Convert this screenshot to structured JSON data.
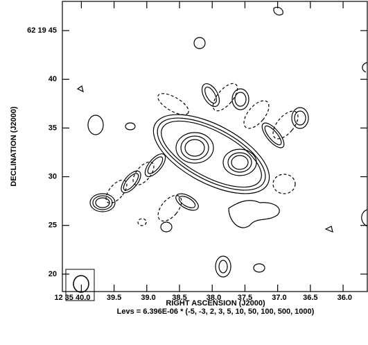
{
  "chart_data": {
    "type": "contour",
    "xlabel": "RIGHT ASCENSION (J2000)",
    "ylabel": "DECLINATION (J2000)",
    "levels_text": "Levs = 6.396E-06 * (-5, -3, 2, 3, 5, 10, 50, 100, 500, 1000)",
    "xlim": [
      40.29,
      35.63
    ],
    "ylim": [
      18.21,
      48.0
    ],
    "xticks": [
      {
        "value": 40,
        "label": "12 35 40.0"
      },
      39.5,
      {
        "value": 39,
        "label": "39.0"
      },
      38.5,
      {
        "value": 38,
        "label": "38.0"
      },
      37.5,
      {
        "value": 37,
        "label": "37.0"
      },
      36.5,
      {
        "value": 36,
        "label": "36.0"
      }
    ],
    "yticks": [
      {
        "value": 45,
        "label": "62 19 45"
      },
      40,
      35,
      30,
      25,
      20
    ]
  }
}
